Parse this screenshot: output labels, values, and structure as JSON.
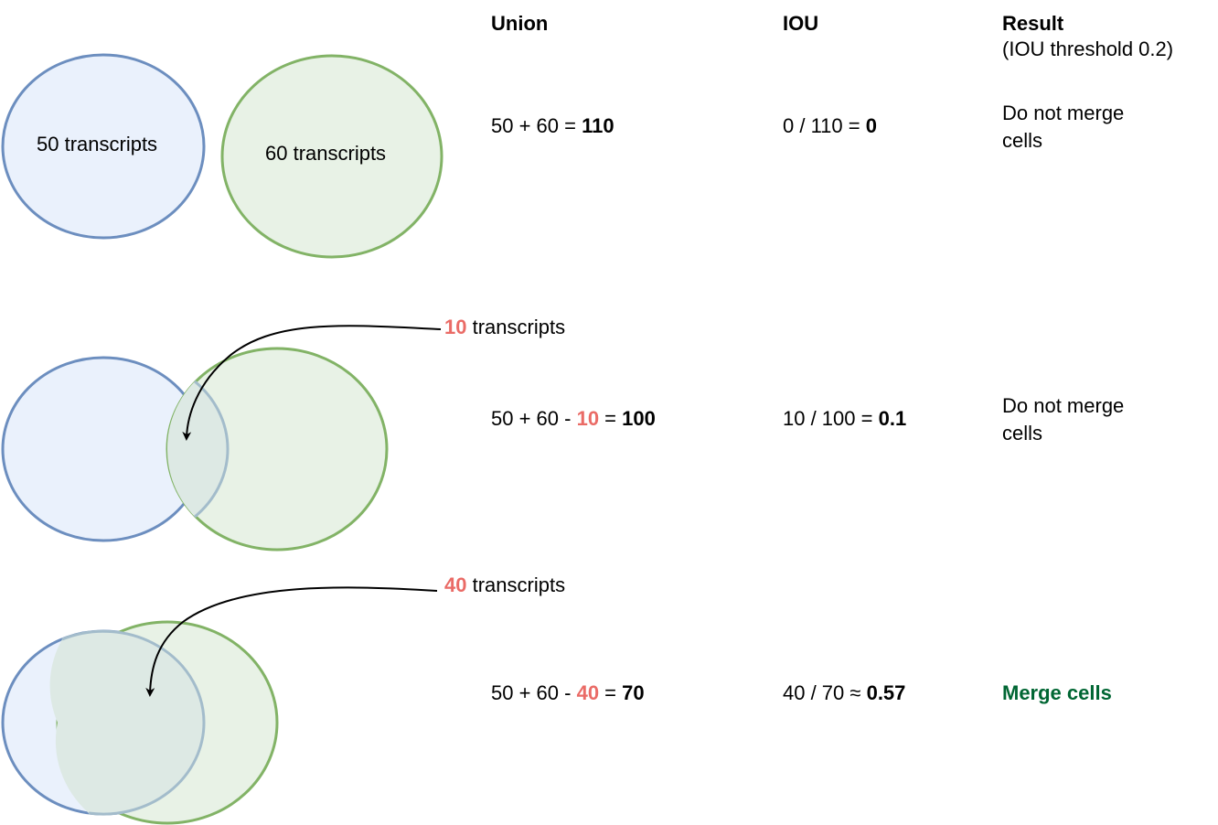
{
  "headers": {
    "union": "Union",
    "iou": "IOU",
    "result": "Result",
    "threshold": "(IOU threshold 0.2)"
  },
  "rows": [
    {
      "circle_a_label": "50 transcripts",
      "circle_b_label": "60 transcripts",
      "union_expr": "50 + 60 = ",
      "union_value": "110",
      "iou_expr": "0 / 110 = ",
      "iou_value": "0",
      "result_line1": "Do not merge",
      "result_line2": "cells"
    },
    {
      "overlap_count": "10",
      "overlap_label": " transcripts",
      "union_expr_a": "50 + 60 - ",
      "union_overlap": "10",
      "union_expr_b": " = ",
      "union_value": "100",
      "iou_expr": "10 / 100 = ",
      "iou_value": "0.1",
      "result_line1": "Do not merge",
      "result_line2": "cells"
    },
    {
      "overlap_count": "40",
      "overlap_label": " transcripts",
      "union_expr_a": "50 + 60 - ",
      "union_overlap": "40",
      "union_expr_b": " = ",
      "union_value": "70",
      "iou_expr": "40 / 70 ≈ ",
      "iou_value": "0.57",
      "result": "Merge cells"
    }
  ],
  "colors": {
    "blue_stroke": "#6c8ebf",
    "blue_fill": "#eaf1fc",
    "green_stroke": "#82b366",
    "green_fill": "#e8f2e6",
    "overlap_fill": "#dfeae6",
    "overlap_stroke": "#a3bccb",
    "highlight_red": "#ea6b66",
    "merge_green": "#006633"
  }
}
